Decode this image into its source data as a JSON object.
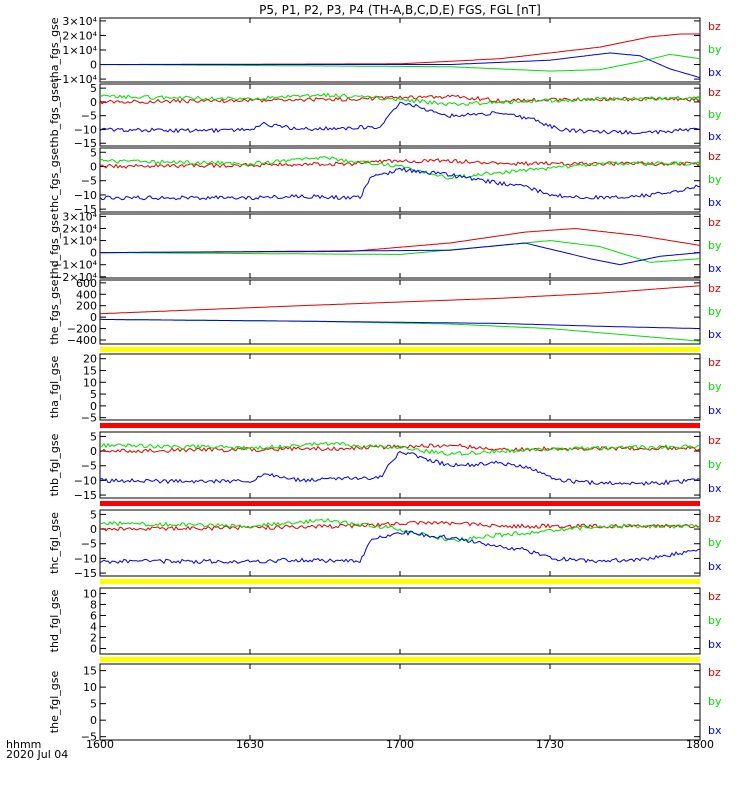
{
  "title": "P5, P1, P2, P3, P4 (TH-A,B,C,D,E) FGS, FGL [nT]",
  "xaxis": {
    "label_top": "hhmm",
    "label_bottom": "2020 Jul 04",
    "ticks": [
      "1600",
      "1630",
      "1700",
      "1730",
      "1800"
    ],
    "tick_minutes": [
      960,
      990,
      1020,
      1050,
      1080
    ],
    "range_minutes": [
      960,
      1080
    ]
  },
  "colors": {
    "bx": "#0000dd",
    "by": "#00dd00",
    "bz": "#dd0000",
    "yellow": "#ffff00",
    "red_bar": "#ff0000",
    "frame": "#000000"
  },
  "chart_data": [
    {
      "type": "line",
      "ylabel": "tha_fgs_gse",
      "yticks": [
        "3×10⁴",
        "2×10⁴",
        "1×10⁴",
        "0",
        "−1×10⁴"
      ],
      "ytick_values": [
        30000,
        20000,
        10000,
        0,
        -10000
      ],
      "ylim": [
        -12000,
        32000
      ],
      "series": [
        {
          "name": "bz",
          "x": [
            960,
            1020,
            1040,
            1060,
            1070,
            1076,
            1080
          ],
          "y": [
            0,
            500,
            4000,
            12000,
            19000,
            21000,
            21000
          ]
        },
        {
          "name": "by",
          "x": [
            960,
            1030,
            1050,
            1060,
            1068,
            1074,
            1080
          ],
          "y": [
            0,
            -1500,
            -4500,
            -3500,
            2000,
            7000,
            4000
          ]
        },
        {
          "name": "bx",
          "x": [
            960,
            1030,
            1050,
            1062,
            1068,
            1074,
            1080
          ],
          "y": [
            0,
            0,
            3000,
            8000,
            6000,
            -3000,
            -9000
          ]
        }
      ],
      "legend": [
        "bz",
        "by",
        "bx"
      ],
      "bar_below": null
    },
    {
      "type": "line",
      "ylabel": "thb_fgs_gse",
      "yticks": [
        "5",
        "0",
        "−5",
        "−10",
        "−15"
      ],
      "ytick_values": [
        5,
        0,
        -5,
        -10,
        -15
      ],
      "ylim": [
        -16,
        6.5
      ],
      "series": [
        {
          "name": "bz",
          "x": [
            960,
            990,
            1010,
            1020,
            1030,
            1040,
            1060,
            1080
          ],
          "y": [
            0,
            0.5,
            1,
            1.5,
            2,
            0.5,
            1,
            1
          ]
        },
        {
          "name": "by",
          "x": [
            960,
            975,
            990,
            1005,
            1020,
            1030,
            1040,
            1060,
            1080
          ],
          "y": [
            2,
            1.5,
            1,
            2.5,
            1,
            -1,
            0,
            1,
            1.5
          ]
        },
        {
          "name": "bx",
          "x": [
            960,
            980,
            990,
            993,
            1000,
            1016,
            1020,
            1024,
            1030,
            1040,
            1046,
            1052,
            1060,
            1070,
            1080
          ],
          "y": [
            -10,
            -10.5,
            -10,
            -8,
            -10,
            -9,
            0,
            -2,
            -5,
            -4,
            -6,
            -10,
            -11,
            -11,
            -10
          ]
        }
      ],
      "legend": [
        "bz",
        "by",
        "bx"
      ],
      "bar_below": null
    },
    {
      "type": "line",
      "ylabel": "thc_fgs_gse",
      "yticks": [
        "5",
        "0",
        "−5",
        "−10",
        "−15"
      ],
      "ytick_values": [
        5,
        0,
        -5,
        -10,
        -15
      ],
      "ylim": [
        -16,
        6.5
      ],
      "series": [
        {
          "name": "bz",
          "x": [
            960,
            990,
            1010,
            1020,
            1030,
            1040,
            1060,
            1080
          ],
          "y": [
            0,
            0.5,
            1,
            2,
            2,
            1,
            1,
            1
          ]
        },
        {
          "name": "by",
          "x": [
            960,
            975,
            990,
            1005,
            1020,
            1030,
            1040,
            1060,
            1080
          ],
          "y": [
            2,
            1.5,
            1,
            3,
            0,
            -4,
            -2,
            1,
            1
          ]
        },
        {
          "name": "bx",
          "x": [
            960,
            990,
            1000,
            1012,
            1014,
            1020,
            1030,
            1040,
            1045,
            1050,
            1060,
            1070,
            1080
          ],
          "y": [
            -11,
            -11,
            -10.5,
            -11,
            -4,
            -1,
            -3,
            -6,
            -7,
            -10,
            -11,
            -10,
            -7
          ]
        }
      ],
      "legend": [
        "bz",
        "by",
        "bx"
      ],
      "bar_below": null
    },
    {
      "type": "line",
      "ylabel": "thd_fgs_gse",
      "yticks": [
        "3×10⁴",
        "2×10⁴",
        "1×10⁴",
        "0",
        "−1×10⁴",
        "−2×10⁴"
      ],
      "ytick_values": [
        30000,
        20000,
        10000,
        0,
        -10000,
        -20000
      ],
      "ylim": [
        -21000,
        32000
      ],
      "series": [
        {
          "name": "bz",
          "x": [
            960,
            1010,
            1030,
            1045,
            1055,
            1068,
            1080
          ],
          "y": [
            0,
            1000,
            8000,
            17000,
            20000,
            14000,
            6000
          ]
        },
        {
          "name": "by",
          "x": [
            960,
            1020,
            1040,
            1050,
            1060,
            1070,
            1080
          ],
          "y": [
            0,
            -1500,
            6000,
            10000,
            5000,
            -8000,
            -5000
          ]
        },
        {
          "name": "bx",
          "x": [
            960,
            1030,
            1045,
            1058,
            1064,
            1072,
            1080
          ],
          "y": [
            0,
            2000,
            8000,
            -5000,
            -10000,
            -3000,
            0
          ]
        }
      ],
      "legend": [
        "bz",
        "by",
        "bx"
      ],
      "bar_below": null
    },
    {
      "type": "line",
      "ylabel": "the_fgs_gse",
      "yticks": [
        "600",
        "400",
        "200",
        "0",
        "−200",
        "−400"
      ],
      "ytick_values": [
        600,
        400,
        200,
        0,
        -200,
        -400
      ],
      "ylim": [
        -470,
        650
      ],
      "series": [
        {
          "name": "bz",
          "x": [
            960,
            1000,
            1040,
            1060,
            1080
          ],
          "y": [
            60,
            200,
            330,
            420,
            550
          ]
        },
        {
          "name": "by",
          "x": [
            960,
            1000,
            1030,
            1050,
            1080
          ],
          "y": [
            -40,
            -70,
            -120,
            -200,
            -420
          ]
        },
        {
          "name": "bx",
          "x": [
            960,
            1000,
            1040,
            1060,
            1080
          ],
          "y": [
            -40,
            -70,
            -110,
            -160,
            -200
          ]
        }
      ],
      "legend": [
        "bz",
        "by",
        "bx"
      ],
      "bar_below": "yellow"
    },
    {
      "type": "line",
      "ylabel": "tha_fgl_gse",
      "yticks": [
        "20",
        "15",
        "10",
        "5",
        "0",
        "−5"
      ],
      "ytick_values": [
        20,
        15,
        10,
        5,
        0,
        -5
      ],
      "ylim": [
        -6,
        22
      ],
      "series": [],
      "legend": [
        "bz",
        "by",
        "bx"
      ],
      "bar_below": "red_bar"
    },
    {
      "type": "line",
      "ylabel": "thb_fgl_gse",
      "yticks": [
        "5",
        "0",
        "−5",
        "−10",
        "−15"
      ],
      "ytick_values": [
        5,
        0,
        -5,
        -10,
        -15
      ],
      "ylim": [
        -16,
        6.5
      ],
      "series": [
        {
          "name": "bz",
          "x": [
            960,
            990,
            1010,
            1020,
            1030,
            1040,
            1060,
            1080
          ],
          "y": [
            0,
            0.5,
            1,
            1.5,
            2,
            0.5,
            1,
            1
          ]
        },
        {
          "name": "by",
          "x": [
            960,
            975,
            990,
            1005,
            1020,
            1030,
            1040,
            1060,
            1080
          ],
          "y": [
            2,
            1.5,
            1,
            2.5,
            1,
            -1,
            0,
            1,
            1.5
          ]
        },
        {
          "name": "bx",
          "x": [
            960,
            980,
            990,
            993,
            1000,
            1016,
            1020,
            1024,
            1030,
            1040,
            1046,
            1052,
            1060,
            1070,
            1080
          ],
          "y": [
            -10,
            -10.5,
            -10,
            -8,
            -10,
            -9,
            0,
            -2,
            -5,
            -4,
            -6,
            -10,
            -11,
            -11,
            -10
          ]
        }
      ],
      "legend": [
        "bz",
        "by",
        "bx"
      ],
      "bar_below": "red_bar"
    },
    {
      "type": "line",
      "ylabel": "thc_fgl_gse",
      "yticks": [
        "5",
        "0",
        "−5",
        "−10",
        "−15"
      ],
      "ytick_values": [
        5,
        0,
        -5,
        -10,
        -15
      ],
      "ylim": [
        -16,
        6.5
      ],
      "series": [
        {
          "name": "bz",
          "x": [
            960,
            990,
            1010,
            1020,
            1030,
            1040,
            1060,
            1080
          ],
          "y": [
            0,
            0.5,
            1,
            2,
            2,
            1,
            1,
            1
          ]
        },
        {
          "name": "by",
          "x": [
            960,
            975,
            990,
            1005,
            1020,
            1030,
            1040,
            1060,
            1080
          ],
          "y": [
            2,
            1.5,
            1,
            3,
            0,
            -4,
            -2,
            1,
            1
          ]
        },
        {
          "name": "bx",
          "x": [
            960,
            990,
            1000,
            1012,
            1014,
            1020,
            1030,
            1040,
            1045,
            1050,
            1060,
            1070,
            1080
          ],
          "y": [
            -11,
            -11,
            -10.5,
            -11,
            -4,
            -1,
            -3,
            -6,
            -7,
            -10,
            -11,
            -10,
            -7
          ]
        }
      ],
      "legend": [
        "bz",
        "by",
        "bx"
      ],
      "bar_below": "yellow"
    },
    {
      "type": "line",
      "ylabel": "thd_fgl_gse",
      "yticks": [
        "10",
        "8",
        "6",
        "4",
        "2",
        "0"
      ],
      "ytick_values": [
        10,
        8,
        6,
        4,
        2,
        0
      ],
      "ylim": [
        -1,
        11
      ],
      "series": [],
      "legend": [
        "bz",
        "by",
        "bx"
      ],
      "bar_below": "yellow"
    },
    {
      "type": "line",
      "ylabel": "the_fgl_gse",
      "yticks": [
        "15",
        "10",
        "5",
        "0",
        "−5"
      ],
      "ytick_values": [
        15,
        10,
        5,
        0,
        -5
      ],
      "ylim": [
        -6,
        17
      ],
      "series": [],
      "legend": [
        "bz",
        "by",
        "bx"
      ],
      "bar_below": null
    }
  ]
}
